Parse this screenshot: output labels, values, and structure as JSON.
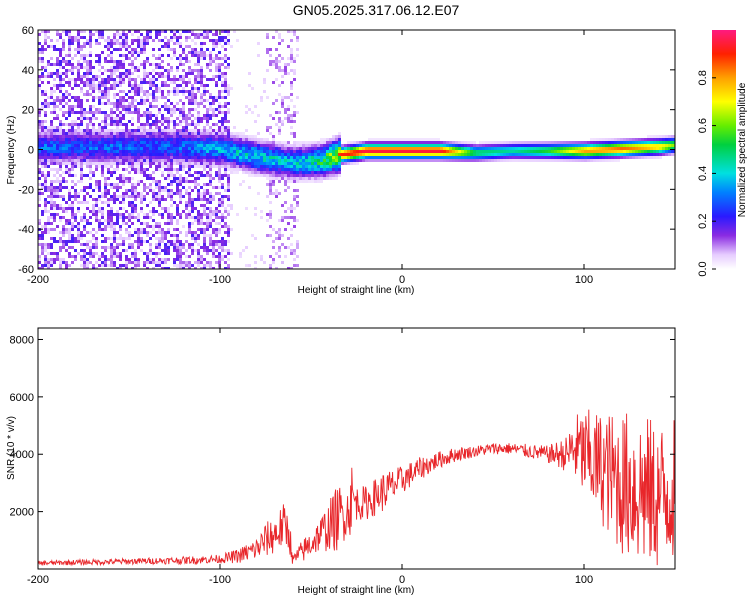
{
  "chart_data": [
    {
      "type": "heatmap",
      "title": "GN05.2025.317.06.12.E07",
      "xlabel": "Height of straight line (km)",
      "ylabel": "Frequency (Hz)",
      "xlim": [
        -200,
        150
      ],
      "ylim": [
        -60,
        60
      ],
      "x_ticks": [
        -200,
        -100,
        0,
        100
      ],
      "y_ticks": [
        -60,
        -40,
        -20,
        0,
        20,
        40,
        60
      ],
      "ridge": {
        "description_points_x": [
          -125,
          -100,
          -80,
          -60,
          -45,
          -35,
          -20,
          0,
          20,
          40,
          60,
          80,
          100,
          120,
          140,
          150
        ],
        "frequency_hz": [
          2,
          1,
          -3,
          -6,
          -5,
          -2,
          0,
          0,
          0,
          -1,
          0,
          0,
          0,
          1,
          2,
          3
        ],
        "amplitude": [
          0.35,
          0.45,
          0.5,
          0.45,
          0.6,
          0.9,
          0.95,
          0.95,
          0.95,
          0.5,
          0.45,
          0.55,
          0.8,
          0.85,
          0.75,
          0.6
        ]
      },
      "colorbar": {
        "label": "Normalized spectral amplitude",
        "range": [
          0.0,
          1.0
        ],
        "ticks": [
          "0.0",
          "0.2",
          "0.4",
          "0.6",
          "0.8"
        ]
      }
    },
    {
      "type": "line",
      "xlabel": "Height of straight line (km)",
      "ylabel": "SNR (10 * v/v)",
      "xlim": [
        -200,
        150
      ],
      "ylim": [
        0,
        8400
      ],
      "x_ticks": [
        -200,
        -100,
        0,
        100
      ],
      "y_ticks": [
        2000,
        4000,
        6000,
        8000
      ],
      "color": "#e8262a",
      "series": [
        {
          "name": "SNR",
          "x": [
            -200,
            -180,
            -160,
            -140,
            -120,
            -100,
            -90,
            -80,
            -75,
            -70,
            -65,
            -62,
            -60,
            -55,
            -50,
            -45,
            -40,
            -35,
            -30,
            -28,
            -25,
            -20,
            -10,
            0,
            10,
            20,
            30,
            40,
            50,
            60,
            70,
            80,
            90,
            95,
            100,
            110,
            120,
            130,
            140,
            150
          ],
          "mean": [
            200,
            230,
            250,
            280,
            300,
            350,
            450,
            700,
            1000,
            1200,
            1500,
            1300,
            300,
            600,
            900,
            1200,
            1500,
            1800,
            2000,
            2500,
            2300,
            2300,
            2700,
            3100,
            3500,
            3800,
            4000,
            4100,
            4200,
            4200,
            4100,
            4000,
            4000,
            4200,
            4000,
            3500,
            3000,
            2800,
            2500,
            2800
          ],
          "spread": [
            80,
            90,
            100,
            110,
            130,
            150,
            250,
            400,
            600,
            700,
            800,
            700,
            200,
            400,
            500,
            600,
            900,
            1200,
            800,
            1400,
            600,
            600,
            700,
            500,
            400,
            300,
            250,
            200,
            200,
            200,
            250,
            300,
            600,
            1200,
            1600,
            2000,
            2500,
            2800,
            2600,
            2500
          ]
        }
      ]
    }
  ]
}
